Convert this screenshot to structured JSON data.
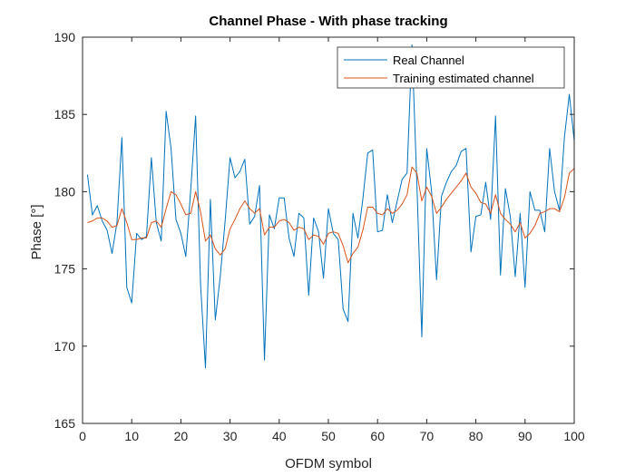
{
  "chart_data": {
    "type": "line",
    "title": "Channel Phase - With phase tracking",
    "xlabel": "OFDM symbol",
    "ylabel": "Phase [°]",
    "xlim": [
      0,
      100
    ],
    "ylim": [
      165,
      190
    ],
    "xticks": [
      0,
      10,
      20,
      30,
      40,
      50,
      60,
      70,
      80,
      90,
      100
    ],
    "yticks": [
      165,
      170,
      175,
      180,
      185,
      190
    ],
    "grid": false,
    "legend_position": "top-right",
    "colors": {
      "real": "#0072BD",
      "estimated": "#D95319"
    },
    "x": [
      1,
      2,
      3,
      4,
      5,
      6,
      7,
      8,
      9,
      10,
      11,
      12,
      13,
      14,
      15,
      16,
      17,
      18,
      19,
      20,
      21,
      22,
      23,
      24,
      25,
      26,
      27,
      28,
      29,
      30,
      31,
      32,
      33,
      34,
      35,
      36,
      37,
      38,
      39,
      40,
      41,
      42,
      43,
      44,
      45,
      46,
      47,
      48,
      49,
      50,
      51,
      52,
      53,
      54,
      55,
      56,
      57,
      58,
      59,
      60,
      61,
      62,
      63,
      64,
      65,
      66,
      67,
      68,
      69,
      70,
      71,
      72,
      73,
      74,
      75,
      76,
      77,
      78,
      79,
      80,
      81,
      82,
      83,
      84,
      85,
      86,
      87,
      88,
      89,
      90,
      91,
      92,
      93,
      94,
      95,
      96,
      97,
      98,
      99,
      100
    ],
    "series": [
      {
        "name": "Real Channel",
        "color": "#0072BD",
        "values": [
          181.1,
          178.5,
          179.1,
          178.1,
          177.5,
          176.0,
          178.0,
          183.5,
          173.8,
          172.8,
          177.3,
          176.9,
          177.1,
          182.2,
          178.0,
          176.8,
          185.2,
          182.8,
          178.2,
          177.3,
          175.8,
          180.1,
          184.9,
          174.0,
          168.6,
          179.5,
          171.7,
          174.5,
          178.1,
          182.2,
          180.9,
          181.3,
          182.1,
          177.9,
          178.4,
          180.4,
          169.1,
          178.5,
          177.6,
          179.6,
          179.6,
          177.0,
          175.8,
          178.6,
          178.3,
          173.3,
          178.3,
          177.4,
          174.4,
          178.9,
          177.3,
          176.9,
          172.4,
          171.6,
          178.6,
          177.0,
          179.5,
          182.5,
          182.7,
          177.4,
          177.5,
          179.8,
          178.0,
          179.4,
          180.8,
          181.2,
          189.5,
          180.5,
          170.6,
          182.8,
          180.0,
          174.3,
          179.7,
          180.6,
          181.3,
          181.7,
          182.6,
          182.8,
          176.1,
          178.4,
          178.5,
          180.6,
          178.2,
          184.9,
          174.6,
          180.2,
          178.4,
          174.5,
          178.6,
          173.8,
          180.0,
          178.8,
          178.8,
          177.4,
          182.8,
          180.0,
          178.8,
          183.5,
          186.3,
          183.3
        ]
      },
      {
        "name": "Training estimated channel",
        "color": "#D95319",
        "values": [
          178.0,
          178.1,
          178.3,
          178.3,
          178.1,
          177.7,
          177.8,
          178.9,
          178.0,
          176.9,
          176.9,
          177.0,
          177.0,
          178.0,
          178.1,
          177.7,
          178.9,
          180.0,
          179.8,
          179.2,
          178.5,
          178.6,
          180.0,
          178.7,
          176.8,
          177.2,
          176.3,
          175.9,
          176.3,
          177.6,
          178.2,
          178.9,
          179.4,
          178.9,
          178.6,
          178.9,
          177.2,
          177.7,
          177.7,
          178.1,
          178.2,
          178.0,
          177.5,
          177.7,
          177.6,
          176.9,
          177.2,
          177.1,
          176.6,
          177.3,
          177.4,
          177.3,
          176.5,
          175.4,
          176.0,
          176.4,
          177.5,
          179.0,
          179.0,
          178.6,
          178.5,
          178.9,
          178.6,
          178.8,
          179.2,
          179.8,
          181.6,
          181.2,
          179.4,
          180.3,
          179.7,
          178.6,
          179.0,
          179.5,
          179.9,
          180.3,
          180.7,
          181.2,
          180.3,
          179.9,
          179.3,
          179.2,
          178.6,
          179.8,
          178.6,
          178.2,
          177.9,
          177.4,
          178.0,
          177.0,
          177.3,
          177.8,
          178.6,
          178.7,
          178.9,
          178.9,
          178.7,
          179.6,
          181.2,
          181.5
        ]
      }
    ]
  }
}
